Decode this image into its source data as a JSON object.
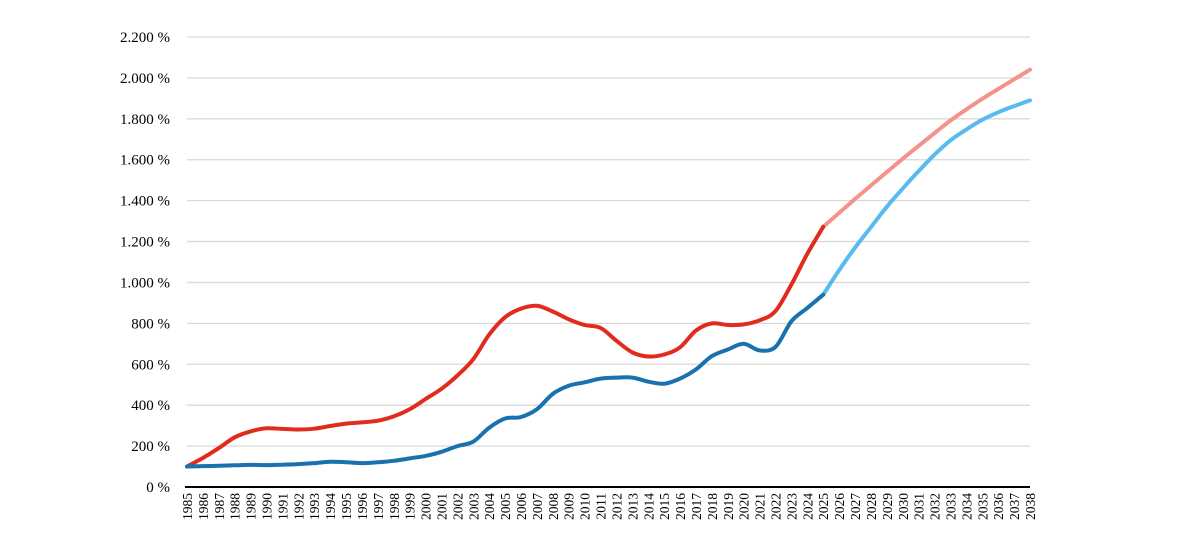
{
  "chart_data": {
    "type": "line",
    "title": "",
    "legend": "none",
    "grid": true,
    "background": "#ffffff",
    "y_axis": {
      "label": "",
      "range": [
        0,
        2200
      ],
      "tick_values": [
        0,
        200,
        400,
        600,
        800,
        1000,
        1200,
        1400,
        1600,
        1800,
        2000,
        2200
      ],
      "tick_labels": [
        "0 %",
        "200 %",
        "400 %",
        "600 %",
        "800 %",
        "1.000 %",
        "1.200 %",
        "1.400 %",
        "1.600 %",
        "1.800 %",
        "2.000 %",
        "2.200 %"
      ]
    },
    "x_axis": {
      "label": "",
      "tick_labels": [
        "1985",
        "1986",
        "1987",
        "1988",
        "1989",
        "1990",
        "1991",
        "1992",
        "1993",
        "1994",
        "1995",
        "1996",
        "1997",
        "1998",
        "1999",
        "2000",
        "2001",
        "2002",
        "2003",
        "2004",
        "2005",
        "2006",
        "2007",
        "2008",
        "2009",
        "2010",
        "2011",
        "2012",
        "2013",
        "2014",
        "2015",
        "2016",
        "2017",
        "2018",
        "2019",
        "2020",
        "2021",
        "2022",
        "2023",
        "2024",
        "2025",
        "2026",
        "2027",
        "2028",
        "2029",
        "2030",
        "2031",
        "2032",
        "2033",
        "2034",
        "2035",
        "2036",
        "2037",
        "2038"
      ],
      "range": [
        1985,
        2038
      ]
    },
    "series": [
      {
        "name": "red-series-projection",
        "color": "#f5928b",
        "years": [
          2025,
          2026,
          2027,
          2028,
          2029,
          2030,
          2031,
          2032,
          2033,
          2034,
          2035,
          2036,
          2037,
          2038
        ],
        "values": [
          1272,
          1340,
          1408,
          1474,
          1540,
          1605,
          1668,
          1730,
          1792,
          1846,
          1898,
          1946,
          1993,
          2040
        ]
      },
      {
        "name": "red-series-historical",
        "color": "#e02b1d",
        "years": [
          1985,
          1986,
          1987,
          1988,
          1989,
          1990,
          1991,
          1992,
          1993,
          1994,
          1995,
          1996,
          1997,
          1998,
          1999,
          2000,
          2001,
          2002,
          2003,
          2004,
          2005,
          2006,
          2007,
          2008,
          2009,
          2010,
          2011,
          2012,
          2013,
          2014,
          2015,
          2016,
          2017,
          2018,
          2019,
          2020,
          2021,
          2022,
          2023,
          2024,
          2025
        ],
        "values": [
          100,
          142,
          190,
          243,
          272,
          287,
          284,
          281,
          285,
          298,
          310,
          316,
          324,
          345,
          380,
          430,
          480,
          545,
          625,
          745,
          830,
          872,
          886,
          858,
          820,
          792,
          778,
          715,
          658,
          638,
          648,
          683,
          765,
          800,
          792,
          795,
          815,
          860,
          990,
          1140,
          1272
        ]
      },
      {
        "name": "blue-series-projection",
        "color": "#58bbf0",
        "years": [
          2025,
          2026,
          2027,
          2028,
          2029,
          2030,
          2031,
          2032,
          2033,
          2034,
          2035,
          2036,
          2037,
          2038
        ],
        "values": [
          940,
          1060,
          1170,
          1270,
          1370,
          1460,
          1545,
          1625,
          1695,
          1748,
          1795,
          1832,
          1862,
          1890
        ]
      },
      {
        "name": "blue-series-historical",
        "color": "#1971ad",
        "years": [
          1985,
          1986,
          1987,
          1988,
          1989,
          1990,
          1991,
          1992,
          1993,
          1994,
          1995,
          1996,
          1997,
          1998,
          1999,
          2000,
          2001,
          2002,
          2003,
          2004,
          2005,
          2006,
          2007,
          2008,
          2009,
          2010,
          2011,
          2012,
          2013,
          2014,
          2015,
          2016,
          2017,
          2018,
          2019,
          2020,
          2021,
          2022,
          2023,
          2024,
          2025
        ],
        "values": [
          100,
          102,
          104,
          106,
          108,
          107,
          109,
          112,
          117,
          123,
          121,
          117,
          121,
          128,
          140,
          152,
          172,
          200,
          222,
          290,
          335,
          342,
          380,
          455,
          495,
          512,
          530,
          535,
          535,
          515,
          505,
          530,
          575,
          640,
          672,
          700,
          668,
          685,
          810,
          875,
          940
        ]
      }
    ]
  },
  "style": {
    "grid_color": "#d9d9d9",
    "axis_color": "#000000",
    "text_color": "#000000",
    "line_width": 4
  }
}
